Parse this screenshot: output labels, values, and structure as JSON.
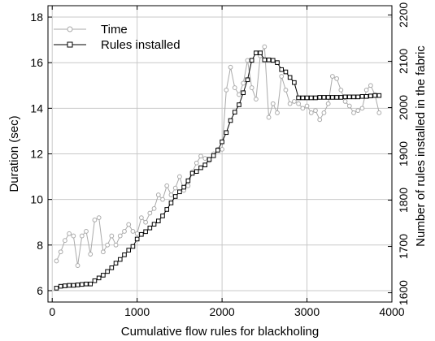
{
  "chart_data": {
    "type": "line",
    "xlabel": "Cumulative flow rules for blackholing",
    "ylabel_left": "Duration (sec)",
    "ylabel_right": "Number of rules installed in the fabric",
    "xlim": [
      -50,
      4000
    ],
    "ylim_left": [
      5.5,
      18.5
    ],
    "ylim_right": [
      1580,
      2220
    ],
    "x_ticks": [
      0,
      1000,
      2000,
      3000,
      4000
    ],
    "y_ticks_left": [
      6,
      8,
      10,
      12,
      14,
      16,
      18
    ],
    "y_ticks_right": [
      1600,
      1700,
      1800,
      1900,
      2000,
      2100,
      2200
    ],
    "grid": true,
    "legend_position": "top-left",
    "series": [
      {
        "name": "Time",
        "axis": "left",
        "marker": "circle",
        "color": "#aaaaaa",
        "x": [
          50,
          100,
          150,
          200,
          250,
          300,
          350,
          400,
          450,
          500,
          550,
          600,
          650,
          700,
          750,
          800,
          850,
          900,
          950,
          1000,
          1050,
          1100,
          1150,
          1200,
          1250,
          1300,
          1350,
          1400,
          1450,
          1500,
          1550,
          1600,
          1650,
          1700,
          1750,
          1800,
          1850,
          1900,
          1950,
          2000,
          2050,
          2100,
          2150,
          2200,
          2250,
          2300,
          2350,
          2400,
          2450,
          2500,
          2550,
          2600,
          2650,
          2700,
          2750,
          2800,
          2850,
          2900,
          2950,
          3000,
          3050,
          3100,
          3150,
          3200,
          3250,
          3300,
          3350,
          3400,
          3450,
          3500,
          3550,
          3600,
          3650,
          3700,
          3750,
          3800,
          3850
        ],
        "y": [
          7.3,
          7.7,
          8.2,
          8.5,
          8.4,
          7.1,
          8.4,
          8.6,
          7.6,
          9.1,
          9.2,
          7.7,
          8.0,
          8.4,
          8.0,
          8.4,
          8.6,
          8.9,
          8.6,
          8.5,
          9.2,
          9.0,
          9.4,
          9.6,
          10.2,
          10.0,
          10.6,
          10.2,
          10.5,
          11.0,
          10.4,
          10.6,
          11.2,
          11.6,
          11.9,
          11.8,
          11.7,
          12.0,
          12.2,
          12.2,
          14.8,
          15.8,
          14.9,
          14.6,
          15.1,
          16.1,
          14.9,
          14.4,
          16.3,
          16.7,
          13.6,
          14.2,
          13.8,
          15.4,
          14.8,
          14.2,
          14.3,
          14.2,
          14.0,
          14.1,
          13.8,
          13.9,
          13.5,
          13.8,
          14.2,
          15.4,
          15.3,
          14.8,
          14.3,
          14.1,
          13.8,
          13.9,
          14.0,
          14.8,
          15.0,
          14.6,
          13.8
        ]
      },
      {
        "name": "Rules installed",
        "axis": "right",
        "marker": "square",
        "color": "#000000",
        "x": [
          50,
          100,
          150,
          200,
          250,
          300,
          350,
          400,
          450,
          500,
          550,
          600,
          650,
          700,
          750,
          800,
          850,
          900,
          950,
          1000,
          1050,
          1100,
          1150,
          1200,
          1250,
          1300,
          1350,
          1400,
          1450,
          1500,
          1550,
          1600,
          1650,
          1700,
          1750,
          1800,
          1850,
          1900,
          1950,
          2000,
          2050,
          2100,
          2150,
          2200,
          2250,
          2300,
          2350,
          2400,
          2450,
          2500,
          2550,
          2600,
          2650,
          2700,
          2750,
          2800,
          2850,
          2900,
          2950,
          3000,
          3050,
          3100,
          3150,
          3200,
          3250,
          3300,
          3350,
          3400,
          3450,
          3500,
          3550,
          3600,
          3650,
          3700,
          3750,
          3800,
          3850
        ],
        "y": [
          1610,
          1614,
          1615,
          1616,
          1616,
          1617,
          1618,
          1619,
          1619,
          1626,
          1632,
          1638,
          1646,
          1654,
          1664,
          1672,
          1682,
          1692,
          1700,
          1716,
          1726,
          1732,
          1740,
          1748,
          1755,
          1766,
          1780,
          1794,
          1808,
          1818,
          1828,
          1842,
          1858,
          1862,
          1870,
          1876,
          1888,
          1896,
          1908,
          1926,
          1946,
          1972,
          1990,
          2006,
          2032,
          2060,
          2102,
          2118,
          2118,
          2103,
          2103,
          2102,
          2097,
          2082,
          2077,
          2065,
          2054,
          2021,
          2021,
          2021,
          2021,
          2021,
          2022,
          2022,
          2022,
          2022,
          2022,
          2022,
          2023,
          2023,
          2023,
          2023,
          2024,
          2024,
          2025,
          2026,
          2026
        ]
      }
    ]
  }
}
